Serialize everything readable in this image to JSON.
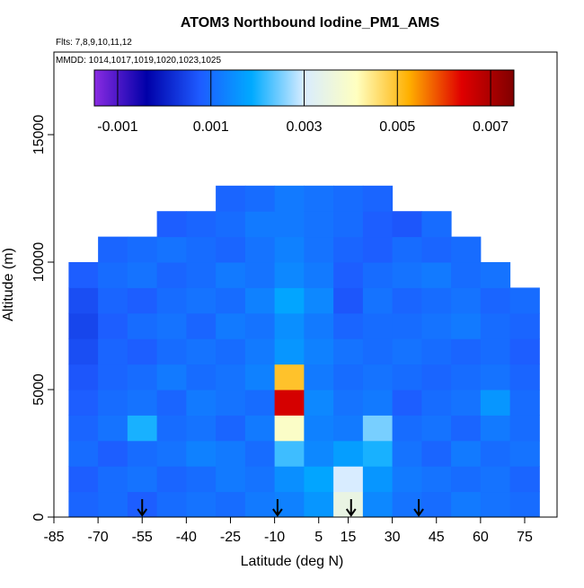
{
  "chart_data": {
    "type": "heatmap",
    "title": "ATOM3 Northbound Iodine_PM1_AMS",
    "subtitle": "Flts: 7,8,9,10,11,12",
    "annotation": "MMDD: 1014,1017,1019,1020,1023,1025",
    "x_label": "Latitude (deg N)",
    "y_label": "Altitude (m)",
    "xlim": [
      -85,
      86
    ],
    "ylim": [
      0,
      18240
    ],
    "xticks": [
      -85,
      -70,
      -55,
      -40,
      -25,
      -10,
      5,
      15,
      30,
      45,
      60,
      75
    ],
    "yticks": [
      0,
      5000,
      10000,
      15000
    ],
    "x_edges": [
      -80,
      -70,
      -60,
      -50,
      -40,
      -30,
      -20,
      -10,
      0,
      10,
      20,
      30,
      40,
      50,
      60,
      70,
      80
    ],
    "y_edges": [
      0,
      1000,
      2000,
      3000,
      4000,
      5000,
      6000,
      7000,
      8000,
      9000,
      10000,
      11000,
      12000,
      13000
    ],
    "z": [
      [
        0.0009,
        0.001,
        0.0008,
        0.001,
        0.0011,
        0.001,
        0.0012,
        0.0013,
        0.0016,
        0.0035,
        0.0014,
        0.0011,
        0.001,
        0.0012,
        0.0011,
        0.001
      ],
      [
        0.0008,
        0.001,
        0.0011,
        0.0009,
        0.001,
        0.0012,
        0.0011,
        0.0015,
        0.0018,
        0.003,
        0.0016,
        0.0012,
        0.0011,
        0.001,
        0.0011,
        0.0009
      ],
      [
        0.001,
        0.0008,
        0.001,
        0.0011,
        0.0013,
        0.0012,
        0.001,
        0.0022,
        0.0014,
        0.0017,
        0.002,
        0.0011,
        0.0009,
        0.0012,
        0.001,
        0.0011
      ],
      [
        0.0009,
        0.0011,
        0.002,
        0.001,
        0.0011,
        0.0009,
        0.0012,
        0.004,
        0.0013,
        0.0012,
        0.0025,
        0.001,
        0.0011,
        0.0009,
        0.0012,
        0.001
      ],
      [
        0.0008,
        0.001,
        0.0011,
        0.0009,
        0.0012,
        0.0011,
        0.001,
        0.0065,
        0.0014,
        0.0011,
        0.0012,
        0.0008,
        0.001,
        0.0011,
        0.0016,
        0.001
      ],
      [
        0.0007,
        0.0009,
        0.001,
        0.0012,
        0.001,
        0.0011,
        0.0013,
        0.005,
        0.0012,
        0.001,
        0.0011,
        0.001,
        0.0009,
        0.001,
        0.0011,
        0.0009
      ],
      [
        0.0006,
        0.0009,
        0.0008,
        0.001,
        0.0011,
        0.001,
        0.0012,
        0.0016,
        0.0013,
        0.0011,
        0.001,
        0.0011,
        0.001,
        0.0009,
        0.001,
        0.0008
      ],
      [
        0.0005,
        0.0008,
        0.001,
        0.0011,
        0.0009,
        0.0012,
        0.0011,
        0.0015,
        0.0012,
        0.0009,
        0.001,
        0.001,
        0.0011,
        0.0012,
        0.001,
        0.0009
      ],
      [
        0.0006,
        0.0009,
        0.0008,
        0.001,
        0.0011,
        0.001,
        0.0013,
        0.0018,
        0.0014,
        0.0007,
        0.0011,
        0.0009,
        0.001,
        0.0011,
        0.0009,
        0.001
      ],
      [
        0.0008,
        0.001,
        0.0011,
        0.0009,
        0.001,
        0.0012,
        0.0011,
        0.0014,
        0.0012,
        0.0008,
        0.001,
        0.0011,
        0.0012,
        0.001,
        0.0011,
        null
      ],
      [
        null,
        0.0009,
        0.001,
        0.0011,
        0.001,
        0.0009,
        0.0011,
        0.0013,
        0.0011,
        0.0009,
        0.0008,
        0.001,
        0.0009,
        0.001,
        null,
        null
      ],
      [
        null,
        null,
        null,
        0.0008,
        0.0009,
        0.001,
        0.0012,
        0.0012,
        0.0011,
        0.001,
        0.0008,
        0.0007,
        0.001,
        null,
        null,
        null
      ],
      [
        null,
        null,
        null,
        null,
        null,
        0.0009,
        0.001,
        0.0012,
        0.0011,
        0.001,
        0.0009,
        null,
        null,
        null,
        null,
        null
      ]
    ],
    "zlim": [
      -0.0015,
      0.0075
    ],
    "zticks": [
      -0.001,
      0.001,
      0.003,
      0.005,
      0.007
    ],
    "colormap": [
      "#8a2be2",
      "#0000a8",
      "#1e5aff",
      "#00aaff",
      "#d8ecff",
      "#ffffc0",
      "#ffb000",
      "#e00000",
      "#800000"
    ],
    "markers_x": [
      -55,
      -9,
      16,
      39
    ]
  }
}
